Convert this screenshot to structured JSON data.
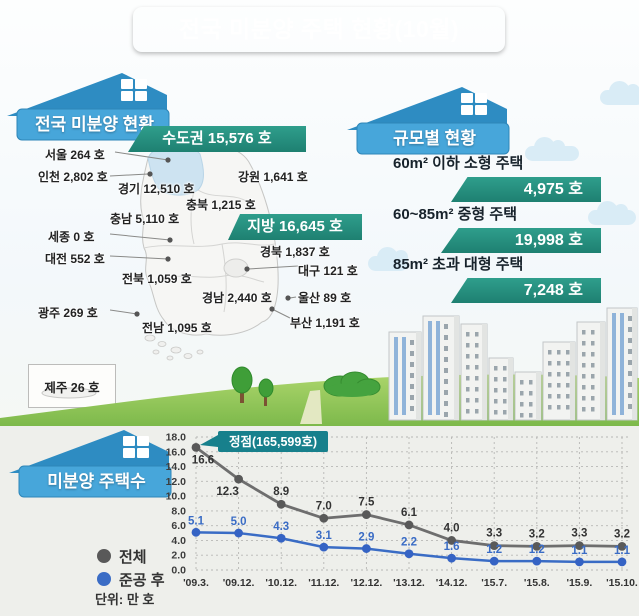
{
  "title": "전국 미분양 주택 현황(10월)",
  "map_section": {
    "header": "전국 미분양 현황",
    "capital_banner": "수도권 15,576 호",
    "provincial_banner": "지방 16,645 호",
    "jeju_label": "제주 26 호",
    "region_labels": [
      "서울 264 호",
      "인천 2,802 호",
      "경기 12,510 호",
      "강원 1,641 호",
      "충북 1,215 호",
      "충남 5,110 호",
      "세종 0 호",
      "대전 552 호",
      "전북 1,059 호",
      "경북 1,837 호",
      "대구 121 호",
      "경남 2,440 호",
      "울산 89 호",
      "광주 269 호",
      "전남 1,095 호",
      "부산 1,191 호"
    ]
  },
  "size_section": {
    "header": "규모별 현황",
    "items": [
      {
        "label": "60m² 이하 소형 주택",
        "value": "4,975 호"
      },
      {
        "label": "60~85m² 중형 주택",
        "value": "19,998 호"
      },
      {
        "label": "85m² 초과 대형 주택",
        "value": "7,248 호"
      }
    ]
  },
  "chart_section": {
    "header": "미분양 주택수",
    "unit_label": "단위: 만 호",
    "legend": [
      {
        "label": "전체",
        "color": "#595959"
      },
      {
        "label": "준공 후",
        "color": "#3a6cc5"
      }
    ]
  },
  "chart_data": {
    "type": "line",
    "categories": [
      "'09.3.",
      "'09.12.",
      "'10.12.",
      "'11.12.",
      "'12.12.",
      "'13.12.",
      "'14.12.",
      "'15.7.",
      "'15.8.",
      "'15.9.",
      "'15.10."
    ],
    "series": [
      {
        "name": "전체",
        "color": "#6e6e6e",
        "marker_color": "#595959",
        "values": [
          16.6,
          12.3,
          8.9,
          7.0,
          7.5,
          6.1,
          4.0,
          3.3,
          3.2,
          3.3,
          3.2
        ]
      },
      {
        "name": "준공 후",
        "color": "#3a6cc5",
        "marker_color": "#3563c4",
        "values": [
          5.1,
          5.0,
          4.3,
          3.1,
          2.9,
          2.2,
          1.6,
          1.2,
          1.2,
          1.1,
          1.1
        ]
      }
    ],
    "title": "미분양 주택수",
    "xlabel": "",
    "ylabel": "",
    "unit": "만 호",
    "ylim": [
      0,
      18
    ],
    "ytick_step": 2,
    "grid": true,
    "legend_position": "left",
    "annotation": {
      "text": "정점(165,599호)",
      "series": "전체",
      "index": 0
    }
  },
  "colors": {
    "title_banner": "#2d6ba3",
    "house_banner": "#47a6da",
    "teal_banner": "#27917f",
    "capital_region_fill": "#cde3f1",
    "annotation_box": "#17808c",
    "chart_background": "#eeefeb"
  }
}
